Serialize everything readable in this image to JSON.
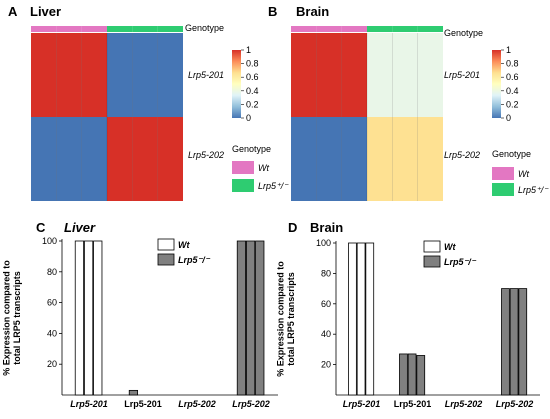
{
  "heatmaps": [
    {
      "letter": "A",
      "title": "Liver",
      "genotype_label": "Genotype",
      "rows": [
        "Lrp5-201",
        "Lrp5-202"
      ],
      "genotype_colors": [
        "#e377c2",
        "#e377c2",
        "#e377c2",
        "#2ecc71",
        "#2ecc71",
        "#2ecc71"
      ],
      "values": [
        [
          1,
          1,
          1,
          0,
          0,
          0
        ],
        [
          0,
          0,
          0,
          1,
          1,
          1
        ]
      ]
    },
    {
      "letter": "B",
      "title": "Brain",
      "genotype_label": "Genotype",
      "rows": [
        "Lrp5-201",
        "Lrp5-202"
      ],
      "genotype_colors": [
        "#e377c2",
        "#e377c2",
        "#e377c2",
        "#2ecc71",
        "#2ecc71",
        "#2ecc71"
      ],
      "values": [
        [
          1,
          1,
          1,
          0.38,
          0.38,
          0.38
        ],
        [
          0,
          0,
          0,
          0.66,
          0.66,
          0.66
        ]
      ]
    }
  ],
  "colorbar": {
    "ticks": [
      "1",
      "0.8",
      "0.6",
      "0.4",
      "0.2",
      "0"
    ],
    "colors": [
      "#4575b4",
      "#91bfdb",
      "#e0f3f8",
      "#ffffbf",
      "#fee090",
      "#fc8d59",
      "#d73027"
    ]
  },
  "genotype_legend": {
    "title": "Genotype",
    "items": [
      {
        "label": "Wt",
        "color": "#e377c2"
      },
      {
        "label": "Lrp5⁺/⁻",
        "color": "#2ecc71"
      }
    ]
  },
  "bar_legend": {
    "items": [
      {
        "label": "Wt",
        "color": "#ffffff"
      },
      {
        "label": "Lrp5⁻/⁻",
        "color": "#808080"
      }
    ]
  },
  "chart_data": [
    {
      "type": "bar",
      "panel": "C",
      "title": "Liver",
      "ylabel": "% Expression compared to total LRP5 transcripts",
      "categories": [
        "Lrp5-201",
        "Lrp5-201",
        "Lrp5-202",
        "Lrp5-202"
      ],
      "ylim": [
        0,
        100
      ],
      "yticks": [
        20,
        40,
        60,
        80,
        100
      ],
      "series": [
        {
          "name": "Wt",
          "color": "#ffffff",
          "values": [
            [
              100,
              100,
              100
            ],
            null,
            [
              0,
              0,
              0
            ],
            null
          ]
        },
        {
          "name": "Lrp5⁻/⁻",
          "color": "#808080",
          "values": [
            null,
            [
              3,
              0,
              0
            ],
            null,
            [
              100,
              100,
              100
            ]
          ]
        }
      ]
    },
    {
      "type": "bar",
      "panel": "D",
      "title": "Brain",
      "ylabel": "% Expression compared to total LRP5 transcripts",
      "categories": [
        "Lrp5-201",
        "Lrp5-201",
        "Lrp5-202",
        "Lrp5-202"
      ],
      "ylim": [
        0,
        100
      ],
      "yticks": [
        20,
        40,
        60,
        80,
        100
      ],
      "series": [
        {
          "name": "Wt",
          "color": "#ffffff",
          "values": [
            [
              100,
              100,
              100
            ],
            null,
            [
              0,
              0,
              0
            ],
            null
          ]
        },
        {
          "name": "Lrp5⁻/⁻",
          "color": "#808080",
          "values": [
            null,
            [
              27,
              27,
              26
            ],
            null,
            [
              70,
              70,
              70
            ]
          ]
        }
      ]
    }
  ]
}
